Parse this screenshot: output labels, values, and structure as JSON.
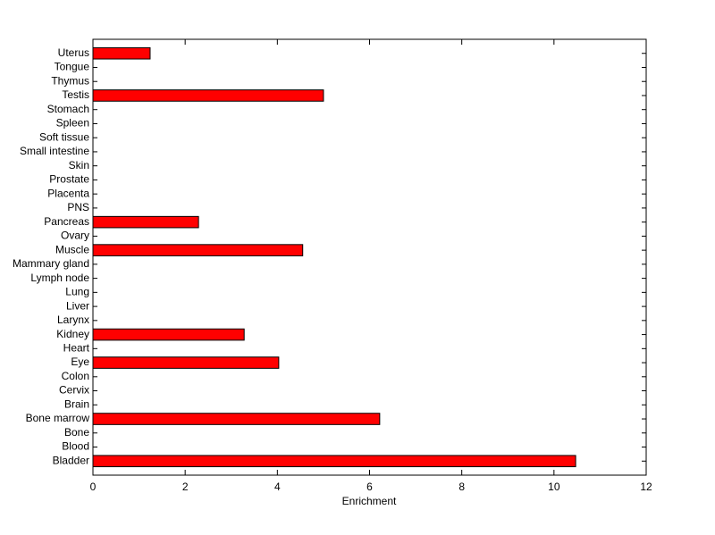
{
  "chart_data": {
    "type": "barh",
    "x_label": "Enrichment",
    "categories": [
      "Bladder",
      "Blood",
      "Bone",
      "Bone marrow",
      "Brain",
      "Cervix",
      "Colon",
      "Eye",
      "Heart",
      "Kidney",
      "Larynx",
      "Liver",
      "Lung",
      "Lymph node",
      "Mammary gland",
      "Muscle",
      "Ovary",
      "Pancreas",
      "PNS",
      "Placenta",
      "Prostate",
      "Skin",
      "Small intestine",
      "Soft tissue",
      "Spleen",
      "Stomach",
      "Testis",
      "Thymus",
      "Tongue",
      "Uterus"
    ],
    "values": [
      10.47,
      0,
      0,
      6.22,
      0,
      0,
      0,
      4.03,
      0,
      3.28,
      0,
      0,
      0,
      0,
      0,
      4.55,
      0,
      2.29,
      0,
      0,
      0,
      0,
      0,
      0,
      0,
      0,
      5.0,
      0,
      0,
      1.24
    ],
    "color": "#ff0000",
    "xlim": [
      0,
      12
    ],
    "xticks": [
      0,
      2,
      4,
      6,
      8,
      10,
      12
    ]
  }
}
